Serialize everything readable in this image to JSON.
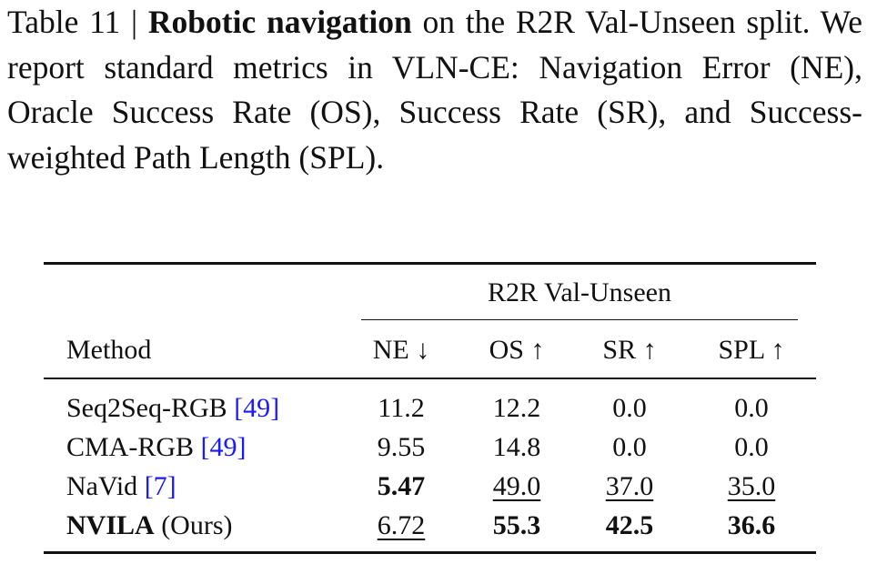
{
  "caption": {
    "label": "Table 11 |",
    "title": "Robotic navigation",
    "text": "on the R2R Val-Unseen split. We report standard metrics in VLN-CE: Navigation Error (NE), Oracle Success Rate (OS), Success Rate (SR), and Success-weighted Path Length (SPL)."
  },
  "table": {
    "group_header": "R2R Val-Unseen",
    "columns": [
      "Method",
      "NE ↓",
      "OS ↑",
      "SR ↑",
      "SPL ↑"
    ],
    "rows": [
      {
        "method": "Seq2Seq-RGB",
        "ref": "[49]",
        "values": [
          "11.2",
          "12.2",
          "0.0",
          "0.0"
        ]
      },
      {
        "method": "CMA-RGB",
        "ref": "[49]",
        "values": [
          "9.55",
          "14.8",
          "0.0",
          "0.0"
        ]
      },
      {
        "method": "NaVid",
        "ref": "[7]",
        "values": [
          "5.47",
          "49.0",
          "37.0",
          "35.0"
        ]
      },
      {
        "method": "NVILA",
        "ref": "(Ours)",
        "values": [
          "6.72",
          "55.3",
          "42.5",
          "36.6"
        ]
      }
    ]
  }
}
